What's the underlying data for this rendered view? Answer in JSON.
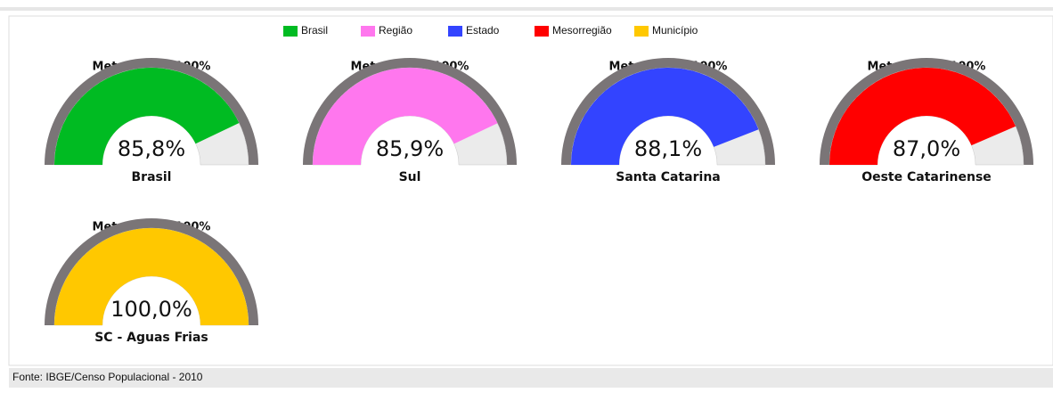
{
  "chart_data": {
    "type": "gauge",
    "legend": {
      "names": [
        "Brasil",
        "Região",
        "Estado",
        "Mesorregião",
        "Município"
      ],
      "colors": [
        "#00bb22",
        "#ff77ee",
        "#3344ff",
        "#ff0000",
        "#ffc800"
      ]
    },
    "titles": [
      "Meta Brasil: 100%",
      "Meta Brasil: 100%",
      "Meta Brasil: 100%",
      "Meta Brasil: 100%",
      "Meta Brasil: 100%"
    ],
    "categories": [
      "Brasil",
      "Sul",
      "Santa Catarina",
      "Oeste Catarinense",
      "SC - Aguas Frias"
    ],
    "values": [
      85.8,
      85.9,
      88.1,
      87.0,
      100.0
    ],
    "value_labels": [
      "85,8%",
      "85,9%",
      "88,1%",
      "87,0%",
      "100,0%"
    ],
    "ylim": [
      0,
      100
    ]
  },
  "source": "Fonte: IBGE/Censo Populacional - 2010"
}
